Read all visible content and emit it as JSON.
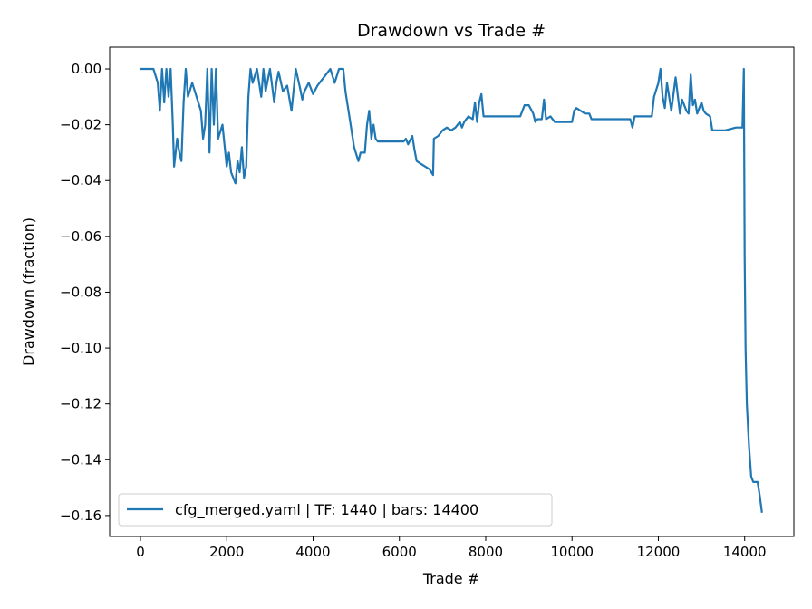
{
  "chart_data": {
    "type": "line",
    "title": "Drawdown vs Trade #",
    "xlabel": "Trade #",
    "ylabel": "Drawdown (fraction)",
    "xlim": [
      -714,
      15140
    ],
    "ylim": [
      -0.1675,
      0.0078
    ],
    "xticks": [
      0,
      2000,
      4000,
      6000,
      8000,
      10000,
      12000,
      14000
    ],
    "xtick_labels": [
      "0",
      "2000",
      "4000",
      "6000",
      "8000",
      "10000",
      "12000",
      "14000"
    ],
    "yticks": [
      0,
      -0.02,
      -0.04,
      -0.06,
      -0.08,
      -0.1,
      -0.12,
      -0.14,
      -0.16
    ],
    "ytick_labels": [
      "0.00",
      "−0.02",
      "−0.04",
      "−0.06",
      "−0.08",
      "−0.10",
      "−0.12",
      "−0.14",
      "−0.16"
    ],
    "grid": false,
    "legend": {
      "placement": "lower-left",
      "entries": [
        "cfg_merged.yaml | TF: 1440 | bars: 14400"
      ]
    },
    "series": [
      {
        "name": "cfg_merged.yaml | TF: 1440 | bars: 14400",
        "color": "#1f77b4",
        "x": [
          0,
          300,
          400,
          450,
          500,
          550,
          600,
          650,
          700,
          750,
          780,
          850,
          900,
          950,
          1000,
          1050,
          1100,
          1200,
          1300,
          1400,
          1450,
          1500,
          1550,
          1600,
          1650,
          1700,
          1750,
          1800,
          1900,
          2000,
          2050,
          2100,
          2200,
          2250,
          2300,
          2350,
          2400,
          2450,
          2500,
          2550,
          2600,
          2700,
          2800,
          2850,
          2900,
          3000,
          3100,
          3150,
          3200,
          3300,
          3400,
          3500,
          3600,
          3700,
          3750,
          3800,
          3900,
          4000,
          4100,
          4200,
          4300,
          4400,
          4500,
          4600,
          4700,
          4750,
          4850,
          4950,
          5050,
          5100,
          5200,
          5250,
          5300,
          5350,
          5400,
          5450,
          5500,
          6100,
          6150,
          6200,
          6300,
          6350,
          6400,
          6500,
          6600,
          6700,
          6780,
          6800,
          6900,
          7000,
          7100,
          7200,
          7300,
          7400,
          7450,
          7500,
          7600,
          7700,
          7750,
          7800,
          7850,
          7900,
          7950,
          8000,
          8800,
          8900,
          9000,
          9100,
          9150,
          9200,
          9300,
          9350,
          9400,
          9500,
          9600,
          10000,
          10050,
          10100,
          10200,
          10300,
          10400,
          10450,
          11350,
          11400,
          11450,
          11850,
          11900,
          12000,
          12050,
          12100,
          12150,
          12200,
          12300,
          12400,
          12500,
          12550,
          12650,
          12700,
          12750,
          12800,
          12850,
          12900,
          13000,
          13050,
          13100,
          13200,
          13250,
          13300,
          13550,
          13800,
          13950,
          13980,
          14000,
          14020,
          14050,
          14100,
          14150,
          14200,
          14300,
          14350,
          14400
        ],
        "y": [
          0,
          0,
          -0.005,
          -0.015,
          0,
          -0.012,
          0,
          -0.01,
          0,
          -0.02,
          -0.035,
          -0.025,
          -0.03,
          -0.033,
          -0.012,
          0,
          -0.01,
          -0.005,
          -0.01,
          -0.015,
          -0.025,
          -0.02,
          0,
          -0.03,
          0,
          -0.02,
          0,
          -0.025,
          -0.02,
          -0.035,
          -0.03,
          -0.037,
          -0.041,
          -0.033,
          -0.037,
          -0.028,
          -0.039,
          -0.035,
          -0.01,
          0,
          -0.005,
          0,
          -0.01,
          0,
          -0.008,
          0,
          -0.012,
          -0.005,
          -0.001,
          -0.008,
          -0.006,
          -0.015,
          0,
          -0.007,
          -0.011,
          -0.008,
          -0.005,
          -0.009,
          -0.006,
          -0.004,
          -0.002,
          0,
          -0.005,
          0,
          0,
          -0.008,
          -0.018,
          -0.028,
          -0.033,
          -0.03,
          -0.03,
          -0.02,
          -0.015,
          -0.025,
          -0.02,
          -0.025,
          -0.026,
          -0.026,
          -0.025,
          -0.027,
          -0.024,
          -0.029,
          -0.033,
          -0.034,
          -0.035,
          -0.036,
          -0.038,
          -0.025,
          -0.024,
          -0.022,
          -0.021,
          -0.022,
          -0.021,
          -0.019,
          -0.021,
          -0.019,
          -0.017,
          -0.018,
          -0.012,
          -0.019,
          -0.012,
          -0.009,
          -0.017,
          -0.017,
          -0.017,
          -0.013,
          -0.013,
          -0.016,
          -0.019,
          -0.018,
          -0.018,
          -0.011,
          -0.018,
          -0.017,
          -0.019,
          -0.019,
          -0.015,
          -0.014,
          -0.015,
          -0.016,
          -0.016,
          -0.018,
          -0.018,
          -0.021,
          -0.017,
          -0.017,
          -0.01,
          -0.005,
          0,
          -0.01,
          -0.014,
          -0.005,
          -0.015,
          -0.003,
          -0.016,
          -0.011,
          -0.015,
          -0.016,
          -0.002,
          -0.013,
          -0.011,
          -0.016,
          -0.012,
          -0.015,
          -0.016,
          -0.017,
          -0.022,
          -0.022,
          -0.022,
          -0.021,
          -0.021,
          0,
          -0.067,
          -0.1,
          -0.12,
          -0.135,
          -0.146,
          -0.148,
          -0.148,
          -0.153,
          -0.159
        ]
      }
    ]
  }
}
